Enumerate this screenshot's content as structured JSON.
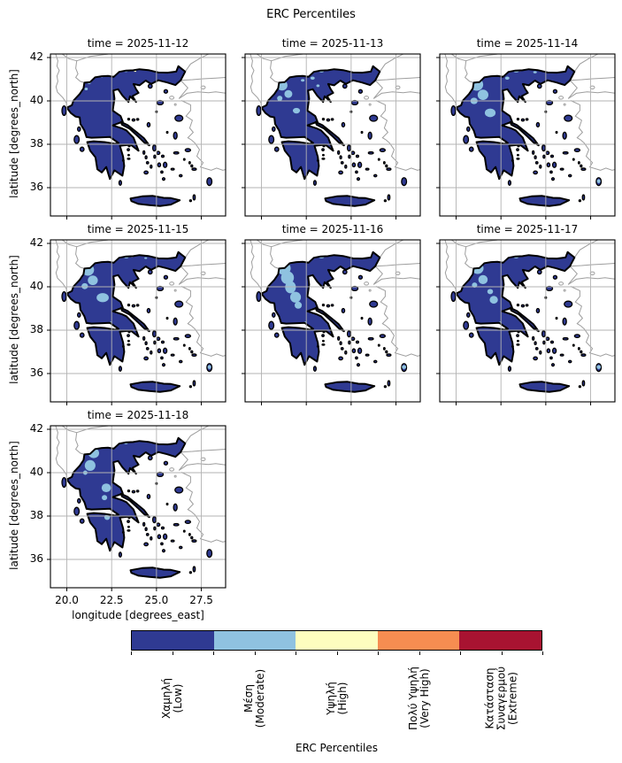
{
  "suptitle": "ERC Percentiles",
  "axis": {
    "xlabel": "longitude [degrees_east]",
    "ylabel": "latitude [degrees_north]",
    "xtick_labels": [
      "20.0",
      "22.5",
      "25.0",
      "27.5"
    ],
    "ytick_labels": [
      "42",
      "40",
      "38",
      "36"
    ]
  },
  "colorbar": {
    "label": "ERC Percentiles",
    "categories": [
      {
        "lines": [
          "Χαμηλή",
          "(Low)"
        ],
        "name": "Χαμηλή (Low)",
        "color": "#2f3a92"
      },
      {
        "lines": [
          "Μέση",
          "(Moderate)"
        ],
        "name": "Μέση (Moderate)",
        "color": "#8fc2e0"
      },
      {
        "lines": [
          "Υψηλή",
          "(High)"
        ],
        "name": "Υψηλή (High)",
        "color": "#fdfdbf"
      },
      {
        "lines": [
          "Πολύ Υψηλή",
          "(Very High)"
        ],
        "name": "Πολύ Υψηλή (Very High)",
        "color": "#f68d51"
      },
      {
        "lines": [
          "Κατάσταση",
          "Συναγερμού",
          "(Extreme)"
        ],
        "name": "Κατάσταση Συναγερμού (Extreme)",
        "color": "#a81331"
      }
    ]
  },
  "chart_data": {
    "type": "heatmap",
    "subtype": "categorical choropleth facet maps of Greece (ERC fire-danger percentile classes), 7 daily panels",
    "title": "ERC Percentiles",
    "x": {
      "label": "longitude [degrees_east]",
      "ticks": [
        20.0,
        22.5,
        25.0,
        27.5
      ],
      "range": [
        19.09,
        28.9
      ]
    },
    "y": {
      "label": "latitude [degrees_north]",
      "ticks": [
        42,
        40,
        38,
        36
      ],
      "range": [
        34.7,
        42.16
      ]
    },
    "grid": true,
    "legend_position": "bottom horizontal colorbar",
    "classes": [
      {
        "name": "Χαμηλή (Low)",
        "color": "#2f3a92"
      },
      {
        "name": "Μέση (Moderate)",
        "color": "#8fc2e0"
      },
      {
        "name": "Υψηλή (High)",
        "color": "#fdfdbf"
      },
      {
        "name": "Πολύ Υψηλή (Very High)",
        "color": "#f68d51"
      },
      {
        "name": "Κατάσταση Συναγερμού (Extreme)",
        "color": "#a81331"
      }
    ],
    "panels": [
      {
        "title": "time = 2025-11-12",
        "date": "2025-11-12",
        "dominant_class": "Χαμηλή (Low)",
        "moderate_patches": [
          [
            21.25,
            40.85,
            0.1,
            0.07
          ],
          [
            21.08,
            40.55,
            0.09,
            0.06
          ],
          [
            23.3,
            41.37,
            0.1,
            0.04
          ],
          [
            21.95,
            41.12,
            0.07,
            0.04
          ]
        ],
        "specks": [
          [
            23.8,
            41.4,
            "#fdfdbf"
          ]
        ]
      },
      {
        "title": "time = 2025-11-13",
        "date": "2025-11-13",
        "dominant_class": "Χαμηλή (Low)",
        "moderate_patches": [
          [
            21.15,
            40.72,
            0.3,
            0.24
          ],
          [
            21.5,
            40.32,
            0.22,
            0.18
          ],
          [
            21.02,
            40.12,
            0.15,
            0.12
          ],
          [
            21.95,
            39.55,
            0.2,
            0.13
          ],
          [
            22.85,
            41.05,
            0.12,
            0.07
          ],
          [
            23.35,
            41.36,
            0.12,
            0.05
          ],
          [
            23.15,
            40.7,
            0.09,
            0.06
          ],
          [
            22.3,
            40.95,
            0.1,
            0.06
          ]
        ],
        "specks": []
      },
      {
        "title": "time = 2025-11-14",
        "date": "2025-11-14",
        "dominant_class": "Χαμηλή (Low)",
        "moderate_patches": [
          [
            21.15,
            40.75,
            0.36,
            0.28
          ],
          [
            21.5,
            40.28,
            0.3,
            0.24
          ],
          [
            21.0,
            40.0,
            0.2,
            0.15
          ],
          [
            21.9,
            39.45,
            0.3,
            0.2
          ],
          [
            23.35,
            41.36,
            0.14,
            0.05
          ],
          [
            22.85,
            41.05,
            0.12,
            0.07
          ],
          [
            24.4,
            41.32,
            0.1,
            0.05
          ],
          [
            26.15,
            35.25,
            0.14,
            0.06
          ],
          [
            27.95,
            36.3,
            0.1,
            0.09
          ]
        ],
        "specks": [
          [
            23.55,
            41.42,
            "#f68d51"
          ]
        ]
      },
      {
        "title": "time = 2025-11-15",
        "date": "2025-11-15",
        "dominant_class": "Χαμηλή (Low)",
        "moderate_patches": [
          [
            21.18,
            40.78,
            0.34,
            0.27
          ],
          [
            21.45,
            40.3,
            0.28,
            0.22
          ],
          [
            21.0,
            40.03,
            0.18,
            0.14
          ],
          [
            22.0,
            39.5,
            0.34,
            0.21
          ],
          [
            23.32,
            41.36,
            0.12,
            0.05
          ],
          [
            24.4,
            41.32,
            0.08,
            0.04
          ],
          [
            26.15,
            35.22,
            0.15,
            0.06
          ],
          [
            27.95,
            36.3,
            0.1,
            0.09
          ],
          [
            22.45,
            38.35,
            0.07,
            0.05
          ]
        ],
        "specks": [
          [
            23.62,
            41.42,
            "#fdfdbf"
          ]
        ]
      },
      {
        "title": "time = 2025-11-16",
        "date": "2025-11-16",
        "dominant_class": "Χαμηλή (Low)",
        "moderate_patches": [
          [
            21.25,
            40.85,
            0.38,
            0.3
          ],
          [
            21.45,
            40.42,
            0.36,
            0.3
          ],
          [
            21.62,
            39.98,
            0.3,
            0.28
          ],
          [
            21.9,
            39.52,
            0.3,
            0.25
          ],
          [
            22.05,
            39.15,
            0.2,
            0.16
          ],
          [
            23.35,
            41.36,
            0.14,
            0.05
          ],
          [
            22.45,
            38.35,
            0.08,
            0.05
          ],
          [
            27.95,
            36.3,
            0.12,
            0.09
          ],
          [
            26.15,
            35.2,
            0.12,
            0.05
          ]
        ],
        "specks": []
      },
      {
        "title": "time = 2025-11-17",
        "date": "2025-11-17",
        "dominant_class": "Χαμηλή (Low)",
        "moderate_patches": [
          [
            21.2,
            40.85,
            0.33,
            0.26
          ],
          [
            21.5,
            40.33,
            0.26,
            0.21
          ],
          [
            21.03,
            40.08,
            0.15,
            0.12
          ],
          [
            22.1,
            39.4,
            0.23,
            0.18
          ],
          [
            21.9,
            39.78,
            0.16,
            0.12
          ],
          [
            23.35,
            41.36,
            0.12,
            0.05
          ],
          [
            22.45,
            38.35,
            0.08,
            0.05
          ],
          [
            27.95,
            36.3,
            0.12,
            0.09
          ]
        ],
        "specks": []
      },
      {
        "title": "time = 2025-11-18",
        "date": "2025-11-18",
        "dominant_class": "Χαμηλή (Low)",
        "moderate_patches": [
          [
            21.5,
            40.9,
            0.3,
            0.23
          ],
          [
            21.3,
            40.33,
            0.3,
            0.25
          ],
          [
            21.03,
            40.0,
            0.12,
            0.1
          ],
          [
            22.2,
            39.3,
            0.26,
            0.2
          ],
          [
            22.1,
            38.85,
            0.15,
            0.12
          ],
          [
            22.25,
            37.95,
            0.16,
            0.13
          ],
          [
            23.3,
            41.36,
            0.1,
            0.05
          ],
          [
            26.15,
            35.2,
            0.12,
            0.05
          ]
        ],
        "specks": []
      }
    ]
  }
}
